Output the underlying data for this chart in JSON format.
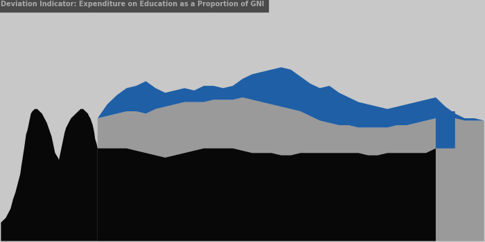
{
  "title": "Deviation Indicator: Expenditure on Education as a Proportion of GNI",
  "title_bg": "#4a4a4a",
  "title_color": "#aaaaaa",
  "bg_color": "#c8c8c8",
  "blue_color": "#1f5fa6",
  "gray_color": "#9a9a9a",
  "black_color": "#080808",
  "figsize": [
    7.0,
    3.5
  ],
  "dpi": 100,
  "xlim": [
    0,
    100
  ],
  "ylim": [
    0,
    100
  ],
  "black_left_poly": [
    [
      0,
      100
    ],
    [
      0,
      92
    ],
    [
      1,
      90
    ],
    [
      2,
      86
    ],
    [
      2.5,
      82
    ],
    [
      3,
      79
    ],
    [
      3.5,
      75
    ],
    [
      4,
      71
    ],
    [
      4.2,
      68
    ],
    [
      4.5,
      64
    ],
    [
      4.8,
      60
    ],
    [
      5,
      57
    ],
    [
      5.2,
      54
    ],
    [
      5.5,
      52
    ],
    [
      5.8,
      49
    ],
    [
      6,
      47
    ],
    [
      6.2,
      45
    ],
    [
      6.5,
      44
    ],
    [
      7,
      43
    ],
    [
      7.5,
      43
    ],
    [
      8,
      44
    ],
    [
      8.5,
      45
    ],
    [
      9,
      47
    ],
    [
      9.5,
      49
    ],
    [
      10,
      52
    ],
    [
      10.5,
      55
    ],
    [
      10.8,
      58
    ],
    [
      11,
      60
    ],
    [
      11.2,
      62
    ],
    [
      11.5,
      63
    ],
    [
      11.8,
      64
    ],
    [
      12,
      65
    ],
    [
      12.2,
      63
    ],
    [
      12.5,
      60
    ],
    [
      12.8,
      57
    ],
    [
      13,
      55
    ],
    [
      13.2,
      53
    ],
    [
      13.5,
      51
    ],
    [
      14,
      49
    ],
    [
      14.5,
      47
    ],
    [
      15,
      46
    ],
    [
      15.5,
      45
    ],
    [
      16,
      44
    ],
    [
      16.5,
      43
    ],
    [
      17,
      43
    ],
    [
      17.5,
      44
    ],
    [
      18,
      45
    ],
    [
      18.2,
      46
    ],
    [
      18.5,
      47
    ],
    [
      19,
      50
    ],
    [
      19.3,
      53
    ],
    [
      19.5,
      56
    ],
    [
      19.8,
      58
    ],
    [
      20,
      60
    ],
    [
      20,
      100
    ]
  ],
  "gray_poly": [
    [
      20,
      60
    ],
    [
      20,
      47
    ],
    [
      22,
      46
    ],
    [
      24,
      45
    ],
    [
      26,
      44
    ],
    [
      28,
      44
    ],
    [
      30,
      45
    ],
    [
      32,
      43
    ],
    [
      34,
      42
    ],
    [
      36,
      41
    ],
    [
      38,
      40
    ],
    [
      40,
      40
    ],
    [
      42,
      40
    ],
    [
      44,
      39
    ],
    [
      46,
      39
    ],
    [
      48,
      39
    ],
    [
      50,
      38
    ],
    [
      52,
      39
    ],
    [
      54,
      40
    ],
    [
      56,
      41
    ],
    [
      58,
      42
    ],
    [
      60,
      43
    ],
    [
      62,
      44
    ],
    [
      64,
      46
    ],
    [
      66,
      48
    ],
    [
      68,
      49
    ],
    [
      70,
      50
    ],
    [
      72,
      50
    ],
    [
      74,
      51
    ],
    [
      76,
      51
    ],
    [
      78,
      51
    ],
    [
      80,
      51
    ],
    [
      82,
      50
    ],
    [
      84,
      50
    ],
    [
      86,
      49
    ],
    [
      88,
      48
    ],
    [
      90,
      47
    ],
    [
      92,
      47
    ],
    [
      94,
      47
    ],
    [
      96,
      48
    ],
    [
      98,
      48
    ],
    [
      100,
      48
    ],
    [
      100,
      100
    ],
    [
      20,
      100
    ]
  ],
  "blue_upper_poly": [
    [
      20,
      47
    ],
    [
      22,
      41
    ],
    [
      24,
      37
    ],
    [
      26,
      34
    ],
    [
      28,
      33
    ],
    [
      30,
      31
    ],
    [
      32,
      34
    ],
    [
      34,
      36
    ],
    [
      36,
      35
    ],
    [
      38,
      34
    ],
    [
      40,
      35
    ],
    [
      42,
      33
    ],
    [
      44,
      33
    ],
    [
      46,
      34
    ],
    [
      48,
      33
    ],
    [
      50,
      30
    ],
    [
      52,
      28
    ],
    [
      54,
      27
    ],
    [
      56,
      26
    ],
    [
      58,
      25
    ],
    [
      60,
      26
    ],
    [
      62,
      29
    ],
    [
      64,
      32
    ],
    [
      66,
      34
    ],
    [
      68,
      33
    ],
    [
      70,
      36
    ],
    [
      72,
      38
    ],
    [
      74,
      40
    ],
    [
      76,
      41
    ],
    [
      78,
      42
    ],
    [
      80,
      43
    ],
    [
      82,
      42
    ],
    [
      84,
      41
    ],
    [
      86,
      40
    ],
    [
      88,
      39
    ],
    [
      90,
      38
    ],
    [
      92,
      42
    ],
    [
      94,
      45
    ],
    [
      96,
      47
    ],
    [
      98,
      47
    ],
    [
      100,
      48
    ],
    [
      100,
      48
    ],
    [
      98,
      48
    ],
    [
      96,
      48
    ],
    [
      94,
      47
    ],
    [
      92,
      47
    ],
    [
      90,
      47
    ],
    [
      88,
      48
    ],
    [
      86,
      49
    ],
    [
      84,
      50
    ],
    [
      82,
      50
    ],
    [
      80,
      51
    ],
    [
      78,
      51
    ],
    [
      76,
      51
    ],
    [
      74,
      51
    ],
    [
      72,
      50
    ],
    [
      70,
      50
    ],
    [
      68,
      49
    ],
    [
      66,
      48
    ],
    [
      64,
      46
    ],
    [
      62,
      44
    ],
    [
      60,
      43
    ],
    [
      58,
      42
    ],
    [
      56,
      41
    ],
    [
      54,
      40
    ],
    [
      52,
      39
    ],
    [
      50,
      38
    ],
    [
      48,
      39
    ],
    [
      46,
      39
    ],
    [
      44,
      39
    ],
    [
      42,
      40
    ],
    [
      40,
      40
    ],
    [
      38,
      40
    ],
    [
      36,
      41
    ],
    [
      34,
      42
    ],
    [
      32,
      43
    ],
    [
      30,
      45
    ],
    [
      28,
      44
    ],
    [
      26,
      44
    ],
    [
      24,
      45
    ],
    [
      22,
      46
    ],
    [
      20,
      47
    ]
  ],
  "black_bottom_poly": [
    [
      20,
      60
    ],
    [
      22,
      60
    ],
    [
      24,
      60
    ],
    [
      26,
      60
    ],
    [
      28,
      61
    ],
    [
      30,
      62
    ],
    [
      32,
      63
    ],
    [
      34,
      64
    ],
    [
      36,
      63
    ],
    [
      38,
      62
    ],
    [
      40,
      61
    ],
    [
      42,
      60
    ],
    [
      44,
      60
    ],
    [
      46,
      60
    ],
    [
      48,
      60
    ],
    [
      50,
      61
    ],
    [
      52,
      62
    ],
    [
      54,
      62
    ],
    [
      56,
      62
    ],
    [
      58,
      63
    ],
    [
      60,
      63
    ],
    [
      62,
      62
    ],
    [
      64,
      62
    ],
    [
      66,
      62
    ],
    [
      68,
      62
    ],
    [
      70,
      62
    ],
    [
      72,
      62
    ],
    [
      74,
      62
    ],
    [
      76,
      63
    ],
    [
      78,
      63
    ],
    [
      80,
      62
    ],
    [
      82,
      62
    ],
    [
      84,
      62
    ],
    [
      86,
      62
    ],
    [
      88,
      62
    ],
    [
      90,
      60
    ],
    [
      90,
      100
    ],
    [
      20,
      100
    ]
  ],
  "blue_right_poly": [
    [
      90,
      60
    ],
    [
      90,
      45
    ],
    [
      92,
      44
    ],
    [
      94,
      44
    ],
    [
      94,
      60
    ],
    [
      90,
      60
    ]
  ]
}
